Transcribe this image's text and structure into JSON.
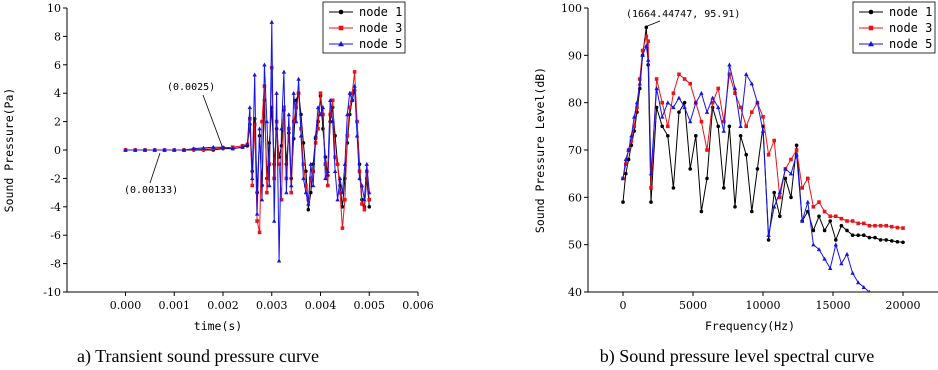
{
  "colors": {
    "node1": "#000000",
    "node3": "#e8141b",
    "node5": "#1414e6"
  },
  "chart_data": [
    {
      "type": "line",
      "caption": "a) Transient sound pressure curve",
      "xlabel": "time(s)",
      "ylabel": "Sound Pressure(Pa)",
      "xlim": [
        -0.0012,
        0.006
      ],
      "ylim": [
        -10,
        10
      ],
      "xticks": [
        "0.000",
        "0.001",
        "0.002",
        "0.003",
        "0.004",
        "0.005",
        "0.006"
      ],
      "yticks": [
        "10",
        "8",
        "6",
        "4",
        "2",
        "0",
        "-2",
        "-4",
        "-6",
        "-8",
        "-10"
      ],
      "annotations": [
        {
          "text": "(0.0025)",
          "x": 0.0025,
          "y": 0.4
        },
        {
          "text": "(0.00133)",
          "x": 0.00133,
          "y": 0.0
        }
      ],
      "legend": {
        "position": "top-right",
        "labels": [
          "node 1",
          "node 3",
          "node 5"
        ]
      },
      "series": [
        {
          "name": "node 1",
          "color": "#000000",
          "marker": "circle",
          "x": [
            0,
            0.0002,
            0.0004,
            0.0006,
            0.0008,
            0.001,
            0.0012,
            0.0014,
            0.0016,
            0.0018,
            0.002,
            0.0022,
            0.0024,
            0.0025,
            0.00255,
            0.0026,
            0.00265,
            0.0027,
            0.00275,
            0.0028,
            0.00285,
            0.0029,
            0.00295,
            0.003,
            0.00305,
            0.0031,
            0.00315,
            0.0032,
            0.00325,
            0.0033,
            0.00335,
            0.0034,
            0.00345,
            0.0035,
            0.00355,
            0.0036,
            0.00365,
            0.0037,
            0.00375,
            0.0038,
            0.00385,
            0.0039,
            0.00395,
            0.004,
            0.00405,
            0.0041,
            0.00415,
            0.0042,
            0.00425,
            0.0043,
            0.00435,
            0.0044,
            0.00445,
            0.0045,
            0.00455,
            0.0046,
            0.00465,
            0.0047,
            0.00475,
            0.0048,
            0.00485,
            0.0049,
            0.00495,
            0.005
          ],
          "y": [
            0,
            0,
            0,
            0,
            0,
            0,
            0,
            0,
            0,
            0,
            0.1,
            0.1,
            0.2,
            0.3,
            1.8,
            -1.5,
            2.2,
            -3.0,
            1.0,
            -2.5,
            3.5,
            -2.0,
            0.5,
            3.0,
            -1.0,
            1.5,
            -0.5,
            0.3,
            2.8,
            -1.0,
            1.2,
            -2.0,
            0.8,
            3.5,
            4.0,
            2.5,
            0.5,
            -1.5,
            -4.2,
            -3.0,
            -1.0,
            0.8,
            2.0,
            3.8,
            1.5,
            -0.5,
            -1.8,
            2.0,
            3.0,
            1.0,
            -1.0,
            -2.5,
            -4.0,
            -2.0,
            0.5,
            2.5,
            3.5,
            4.2,
            2.0,
            -1.0,
            -3.5,
            -4.0,
            -2.0,
            -4.0
          ]
        },
        {
          "name": "node 3",
          "color": "#e8141b",
          "marker": "square",
          "x": [
            0,
            0.0002,
            0.0004,
            0.0006,
            0.0008,
            0.001,
            0.0012,
            0.0014,
            0.0016,
            0.0018,
            0.002,
            0.0022,
            0.0024,
            0.0025,
            0.00255,
            0.0026,
            0.00265,
            0.0027,
            0.00275,
            0.0028,
            0.00285,
            0.0029,
            0.00295,
            0.003,
            0.00305,
            0.0031,
            0.00315,
            0.0032,
            0.00325,
            0.0033,
            0.00335,
            0.0034,
            0.00345,
            0.0035,
            0.00355,
            0.0036,
            0.00365,
            0.0037,
            0.00375,
            0.0038,
            0.00385,
            0.0039,
            0.00395,
            0.004,
            0.00405,
            0.0041,
            0.00415,
            0.0042,
            0.00425,
            0.0043,
            0.00435,
            0.0044,
            0.00445,
            0.0045,
            0.00455,
            0.0046,
            0.00465,
            0.0047,
            0.00475,
            0.0048,
            0.00485,
            0.0049,
            0.00495,
            0.005
          ],
          "y": [
            0,
            0,
            0,
            0,
            0,
            0,
            0,
            0.05,
            0.05,
            0.1,
            0.15,
            0.2,
            0.3,
            0.4,
            2.2,
            -2.5,
            1.8,
            -5.0,
            -5.8,
            2.0,
            4.5,
            -3.0,
            -1.0,
            5.8,
            -2.0,
            2.0,
            -1.0,
            -3.5,
            3.0,
            -2.0,
            1.5,
            -3.0,
            2.0,
            3.0,
            4.0,
            1.5,
            -1.0,
            -2.5,
            -3.5,
            -2.0,
            -1.5,
            0.5,
            1.5,
            4.0,
            2.5,
            -1.0,
            -2.5,
            2.5,
            3.5,
            -0.5,
            -1.0,
            -3.0,
            -5.5,
            -3.5,
            1.0,
            3.0,
            4.0,
            5.5,
            2.0,
            -1.5,
            -3.8,
            -4.2,
            -1.5,
            -3.5
          ]
        },
        {
          "name": "node 5",
          "color": "#1414e6",
          "marker": "triangle",
          "x": [
            0,
            0.0002,
            0.0004,
            0.0006,
            0.0008,
            0.001,
            0.0012,
            0.0014,
            0.0016,
            0.0018,
            0.002,
            0.0022,
            0.0024,
            0.0025,
            0.00255,
            0.0026,
            0.00265,
            0.0027,
            0.00275,
            0.0028,
            0.00285,
            0.0029,
            0.00295,
            0.003,
            0.00305,
            0.0031,
            0.00315,
            0.0032,
            0.00325,
            0.0033,
            0.00335,
            0.0034,
            0.00345,
            0.0035,
            0.00355,
            0.0036,
            0.00365,
            0.0037,
            0.00375,
            0.0038,
            0.00385,
            0.0039,
            0.00395,
            0.004,
            0.00405,
            0.0041,
            0.00415,
            0.0042,
            0.00425,
            0.0043,
            0.00435,
            0.0044,
            0.00445,
            0.0045,
            0.00455,
            0.0046,
            0.00465,
            0.0047,
            0.00475,
            0.0048,
            0.00485,
            0.0049,
            0.00495,
            0.005
          ],
          "y": [
            0,
            0,
            0,
            0,
            0,
            0,
            0,
            0.1,
            0.15,
            0.2,
            0.2,
            0.1,
            0.2,
            0.4,
            3.0,
            -2.0,
            5.3,
            -4.5,
            1.5,
            -3.5,
            6.0,
            2.0,
            -2.5,
            9.0,
            -5.0,
            4.0,
            -7.8,
            1.5,
            5.5,
            -3.0,
            2.5,
            -2.5,
            4.0,
            2.0,
            5.0,
            1.0,
            -2.0,
            -3.0,
            -3.8,
            -1.0,
            -2.5,
            1.0,
            3.0,
            2.5,
            3.0,
            -2.0,
            -1.5,
            3.5,
            2.0,
            -1.5,
            -3.5,
            -2.0,
            -3.0,
            -1.0,
            2.5,
            4.0,
            3.5,
            4.5,
            1.0,
            -2.0,
            -2.5,
            -3.5,
            -1.0,
            -3.0
          ]
        }
      ]
    },
    {
      "type": "line",
      "caption": "b) Sound pressure level spectral curve",
      "xlabel": "Frequency(Hz)",
      "ylabel": "Sound Pressure Level(dB)",
      "xlim": [
        -2500,
        22500
      ],
      "ylim": [
        40,
        100
      ],
      "xticks": [
        "0",
        "5000",
        "10000",
        "15000",
        "20000"
      ],
      "yticks": [
        "100",
        "90",
        "80",
        "70",
        "60",
        "50",
        "40"
      ],
      "annotations": [
        {
          "text": "(1664.44747, 95.91)",
          "x": 1664.44747,
          "y": 95.91
        }
      ],
      "legend": {
        "position": "top-right",
        "labels": [
          "node 1",
          "node 3",
          "node 5"
        ]
      },
      "series": [
        {
          "name": "node 1",
          "color": "#000000",
          "marker": "circle",
          "x": [
            0,
            200,
            400,
            600,
            800,
            1000,
            1200,
            1400,
            1664,
            1800,
            2000,
            2400,
            2800,
            3200,
            3600,
            4000,
            4400,
            4800,
            5200,
            5600,
            6000,
            6400,
            6800,
            7200,
            7600,
            8000,
            8400,
            8800,
            9200,
            9600,
            10000,
            10400,
            10800,
            11200,
            11600,
            12000,
            12400,
            12800,
            13200,
            13600,
            14000,
            14400,
            14800,
            15200,
            15600,
            16000,
            16400,
            16800,
            17200,
            17600,
            18000,
            18400,
            18800,
            19200,
            19600,
            20000
          ],
          "y": [
            59,
            65,
            68,
            71,
            74,
            78,
            83,
            90,
            95.91,
            88,
            59,
            79,
            75,
            73,
            62,
            78,
            80,
            66,
            73,
            57,
            64,
            79,
            75,
            62,
            75,
            58,
            73,
            69,
            57,
            66,
            75,
            51,
            61,
            56,
            64,
            60,
            71,
            55,
            57,
            53,
            56,
            53,
            55,
            51,
            54,
            53,
            52,
            52,
            52,
            51.5,
            51.5,
            51,
            51,
            50.8,
            50.6,
            50.5
          ]
        },
        {
          "name": "node 3",
          "color": "#e8141b",
          "marker": "square",
          "x": [
            0,
            200,
            400,
            600,
            800,
            1000,
            1200,
            1400,
            1664,
            1800,
            2000,
            2400,
            2800,
            3200,
            3600,
            4000,
            4400,
            4800,
            5200,
            5600,
            6000,
            6400,
            6800,
            7200,
            7600,
            8000,
            8400,
            8800,
            9200,
            9600,
            10000,
            10400,
            10800,
            11200,
            11600,
            12000,
            12400,
            12800,
            13200,
            13600,
            14000,
            14400,
            14800,
            15200,
            15600,
            16000,
            16400,
            16800,
            17200,
            17600,
            18000,
            18400,
            18800,
            19200,
            19600,
            20000
          ],
          "y": [
            64,
            67,
            70,
            72,
            75,
            79,
            85,
            91,
            94,
            93,
            62,
            85,
            80,
            75,
            82,
            86,
            85,
            84,
            80,
            76,
            70,
            80,
            83,
            76,
            86,
            82,
            79,
            75,
            78,
            80,
            77,
            69,
            72,
            60,
            66,
            68,
            70,
            62,
            64,
            58,
            59,
            57,
            56,
            56,
            55.5,
            55,
            55,
            54.5,
            54.5,
            54,
            54,
            54,
            54,
            53.8,
            53.6,
            53.5
          ]
        },
        {
          "name": "node 5",
          "color": "#1414e6",
          "marker": "triangle",
          "x": [
            0,
            200,
            400,
            600,
            800,
            1000,
            1200,
            1400,
            1664,
            1800,
            2000,
            2400,
            2800,
            3200,
            3600,
            4000,
            4400,
            4800,
            5200,
            5600,
            6000,
            6400,
            6800,
            7200,
            7600,
            8000,
            8400,
            8800,
            9200,
            9600,
            10000,
            10400,
            10800,
            11200,
            11600,
            12000,
            12400,
            12800,
            13200,
            13600,
            14000,
            14400,
            14800,
            15200,
            15600,
            16000,
            16400,
            16800,
            17200,
            17600
          ],
          "y": [
            64,
            68,
            70,
            73,
            77,
            80,
            84,
            90,
            92,
            89,
            65,
            83,
            77,
            80,
            79,
            81,
            79,
            76,
            80,
            82,
            78,
            81,
            79,
            74,
            88,
            83,
            75,
            86,
            84,
            80,
            74,
            52,
            58,
            61,
            66,
            65,
            69,
            55,
            59,
            50,
            49,
            47,
            45,
            50,
            46,
            48,
            44,
            42,
            41,
            40
          ]
        }
      ]
    }
  ]
}
